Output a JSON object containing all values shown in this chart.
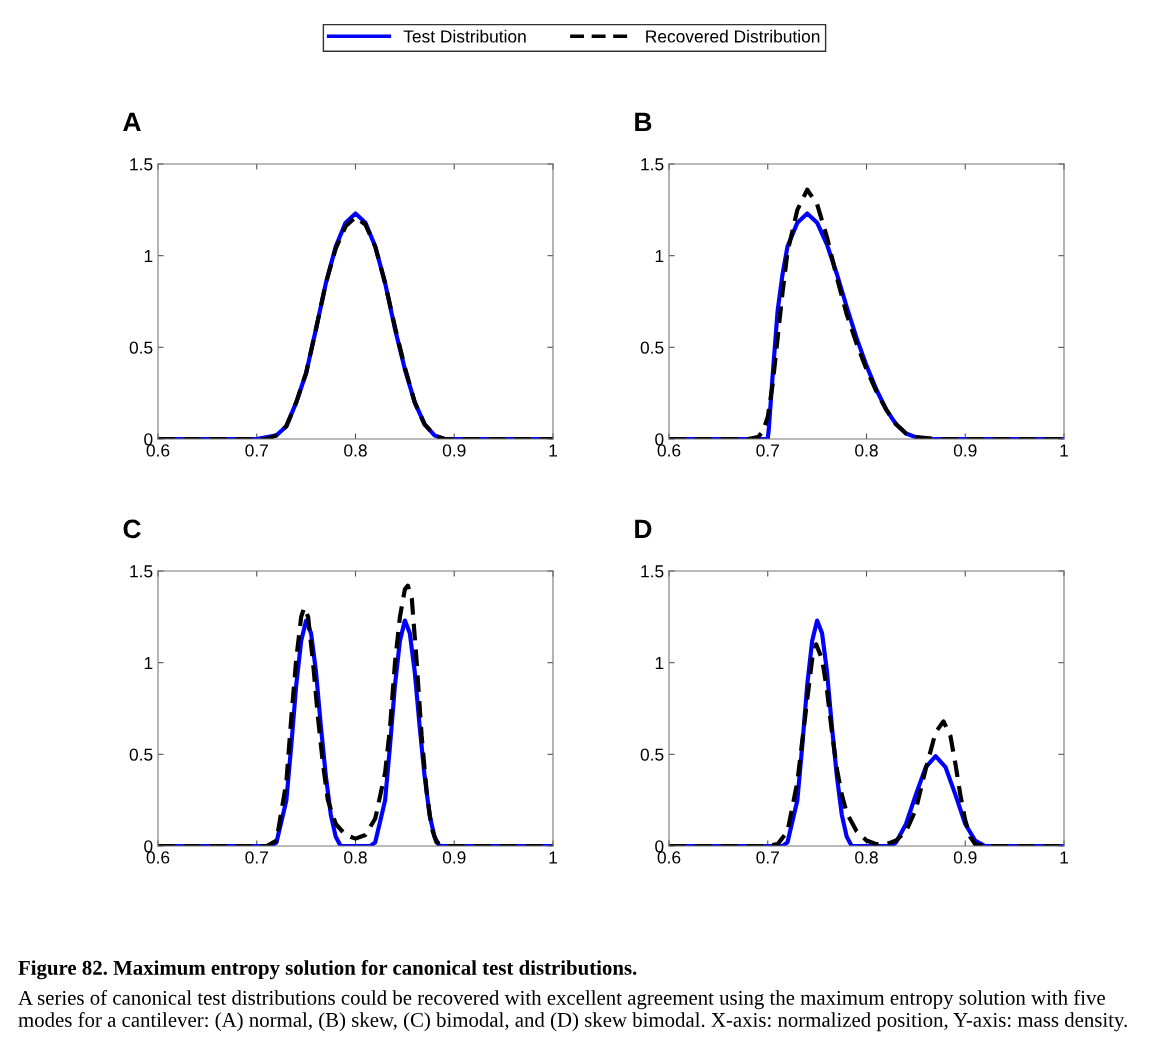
{
  "chart_data": [
    {
      "type": "line",
      "title": "A",
      "xlim": [
        0.6,
        1
      ],
      "ylim": [
        0,
        1.5
      ],
      "xticks": [
        0.6,
        0.7,
        0.8,
        0.9,
        1
      ],
      "yticks": [
        0,
        0.5,
        1,
        1.5
      ],
      "grid": false,
      "legend": "top",
      "series": [
        {
          "name": "Test Distribution",
          "color": "#0000ff",
          "line_style": "solid",
          "x": [
            0.6,
            0.7,
            0.72,
            0.73,
            0.74,
            0.75,
            0.76,
            0.77,
            0.78,
            0.79,
            0.8,
            0.81,
            0.82,
            0.83,
            0.84,
            0.85,
            0.86,
            0.87,
            0.88,
            0.89,
            1.0
          ],
          "values": [
            0,
            0,
            0.02,
            0.07,
            0.2,
            0.36,
            0.6,
            0.85,
            1.05,
            1.18,
            1.23,
            1.18,
            1.05,
            0.85,
            0.6,
            0.38,
            0.2,
            0.08,
            0.02,
            0,
            0
          ]
        },
        {
          "name": "Recovered Distribution",
          "color": "#000000",
          "line_style": "dashed",
          "x": [
            0.6,
            0.71,
            0.72,
            0.73,
            0.74,
            0.75,
            0.76,
            0.77,
            0.78,
            0.79,
            0.8,
            0.81,
            0.82,
            0.83,
            0.84,
            0.85,
            0.86,
            0.87,
            0.88,
            0.89,
            1.0
          ],
          "values": [
            0,
            0,
            0.02,
            0.07,
            0.2,
            0.36,
            0.6,
            0.85,
            1.04,
            1.16,
            1.21,
            1.17,
            1.05,
            0.85,
            0.61,
            0.39,
            0.2,
            0.08,
            0.02,
            0,
            0
          ]
        }
      ]
    },
    {
      "type": "line",
      "title": "B",
      "xlim": [
        0.6,
        1
      ],
      "ylim": [
        0,
        1.5
      ],
      "xticks": [
        0.6,
        0.7,
        0.8,
        0.9,
        1
      ],
      "yticks": [
        0,
        0.5,
        1,
        1.5
      ],
      "grid": false,
      "series": [
        {
          "color": "#0000ff",
          "line_style": "solid",
          "x": [
            0.6,
            0.7,
            0.701,
            0.705,
            0.71,
            0.715,
            0.72,
            0.73,
            0.74,
            0.75,
            0.76,
            0.77,
            0.78,
            0.79,
            0.8,
            0.81,
            0.82,
            0.83,
            0.84,
            0.85,
            0.86,
            1.0
          ],
          "values": [
            0,
            0,
            0.05,
            0.35,
            0.7,
            0.9,
            1.05,
            1.18,
            1.23,
            1.18,
            1.06,
            0.9,
            0.72,
            0.55,
            0.4,
            0.27,
            0.16,
            0.08,
            0.03,
            0.01,
            0,
            0
          ]
        },
        {
          "color": "#000000",
          "line_style": "dashed",
          "x": [
            0.6,
            0.68,
            0.69,
            0.695,
            0.7,
            0.705,
            0.71,
            0.715,
            0.72,
            0.73,
            0.74,
            0.75,
            0.76,
            0.77,
            0.78,
            0.79,
            0.8,
            0.81,
            0.82,
            0.83,
            0.84,
            0.85,
            0.87,
            1.0
          ],
          "values": [
            0,
            0,
            0.01,
            0.04,
            0.12,
            0.3,
            0.55,
            0.8,
            1.02,
            1.25,
            1.36,
            1.28,
            1.1,
            0.88,
            0.68,
            0.52,
            0.38,
            0.26,
            0.16,
            0.08,
            0.03,
            0.01,
            0,
            0
          ]
        }
      ]
    },
    {
      "type": "line",
      "title": "C",
      "xlim": [
        0.6,
        1
      ],
      "ylim": [
        0,
        1.5
      ],
      "xticks": [
        0.6,
        0.7,
        0.8,
        0.9,
        1
      ],
      "yticks": [
        0,
        0.5,
        1,
        1.5
      ],
      "grid": false,
      "series": [
        {
          "color": "#0000ff",
          "line_style": "solid",
          "x": [
            0.6,
            0.715,
            0.72,
            0.73,
            0.735,
            0.74,
            0.745,
            0.75,
            0.755,
            0.76,
            0.765,
            0.77,
            0.775,
            0.78,
            0.785,
            0.815,
            0.82,
            0.83,
            0.835,
            0.84,
            0.845,
            0.85,
            0.855,
            0.86,
            0.865,
            0.87,
            0.875,
            0.88,
            0.885,
            1.0
          ],
          "values": [
            0,
            0,
            0.02,
            0.25,
            0.55,
            0.88,
            1.12,
            1.23,
            1.16,
            0.95,
            0.65,
            0.38,
            0.17,
            0.05,
            0,
            0,
            0.02,
            0.25,
            0.55,
            0.88,
            1.12,
            1.23,
            1.16,
            0.95,
            0.65,
            0.38,
            0.17,
            0.05,
            0,
            0
          ]
        },
        {
          "color": "#000000",
          "line_style": "dashed",
          "x": [
            0.6,
            0.71,
            0.72,
            0.73,
            0.735,
            0.74,
            0.745,
            0.748,
            0.752,
            0.757,
            0.762,
            0.767,
            0.772,
            0.78,
            0.79,
            0.8,
            0.81,
            0.82,
            0.83,
            0.835,
            0.84,
            0.845,
            0.85,
            0.853,
            0.857,
            0.862,
            0.867,
            0.872,
            0.877,
            0.882,
            0.89,
            1.0
          ],
          "values": [
            0,
            0,
            0.03,
            0.35,
            0.7,
            1.02,
            1.25,
            1.3,
            1.25,
            1.0,
            0.7,
            0.45,
            0.25,
            0.12,
            0.06,
            0.04,
            0.06,
            0.15,
            0.4,
            0.65,
            1.0,
            1.25,
            1.4,
            1.42,
            1.35,
            1.0,
            0.6,
            0.3,
            0.1,
            0.02,
            0,
            0
          ]
        }
      ]
    },
    {
      "type": "line",
      "title": "D",
      "xlim": [
        0.6,
        1
      ],
      "ylim": [
        0,
        1.5
      ],
      "xticks": [
        0.6,
        0.7,
        0.8,
        0.9,
        1
      ],
      "yticks": [
        0,
        0.5,
        1,
        1.5
      ],
      "grid": false,
      "annotations": [
        "Figure 82. Maximum entropy solution for canonical test distributions.",
        "A series of canonical test distributions could be recovered with excellent agreement using the maximum entropy solution with five modes for a cantilever: (A) normal, (B) skew, (C) bimodal, and (D) skew bimodal. X-axis: normalized position, Y-axis: mass density."
      ],
      "series": [
        {
          "color": "#0000ff",
          "line_style": "solid",
          "x": [
            0.6,
            0.715,
            0.72,
            0.73,
            0.735,
            0.74,
            0.745,
            0.75,
            0.755,
            0.76,
            0.765,
            0.77,
            0.775,
            0.78,
            0.785,
            0.825,
            0.83,
            0.84,
            0.85,
            0.86,
            0.87,
            0.88,
            0.89,
            0.9,
            0.91,
            0.92,
            1.0
          ],
          "values": [
            0,
            0,
            0.02,
            0.25,
            0.55,
            0.88,
            1.12,
            1.23,
            1.16,
            0.95,
            0.65,
            0.38,
            0.17,
            0.05,
            0,
            0,
            0.02,
            0.12,
            0.28,
            0.43,
            0.49,
            0.43,
            0.28,
            0.12,
            0.03,
            0,
            0
          ]
        },
        {
          "color": "#000000",
          "line_style": "dashed",
          "x": [
            0.6,
            0.7,
            0.71,
            0.72,
            0.73,
            0.74,
            0.745,
            0.749,
            0.755,
            0.76,
            0.765,
            0.77,
            0.775,
            0.78,
            0.79,
            0.8,
            0.81,
            0.82,
            0.83,
            0.84,
            0.85,
            0.86,
            0.87,
            0.878,
            0.885,
            0.89,
            0.895,
            0.9,
            0.905,
            0.91,
            0.92,
            1.0
          ],
          "values": [
            0,
            0,
            0.01,
            0.08,
            0.35,
            0.8,
            1.02,
            1.1,
            1.02,
            0.85,
            0.62,
            0.42,
            0.28,
            0.18,
            0.08,
            0.03,
            0.01,
            0.01,
            0.03,
            0.08,
            0.2,
            0.42,
            0.62,
            0.68,
            0.6,
            0.45,
            0.28,
            0.14,
            0.05,
            0.01,
            0,
            0
          ]
        }
      ]
    }
  ]
}
